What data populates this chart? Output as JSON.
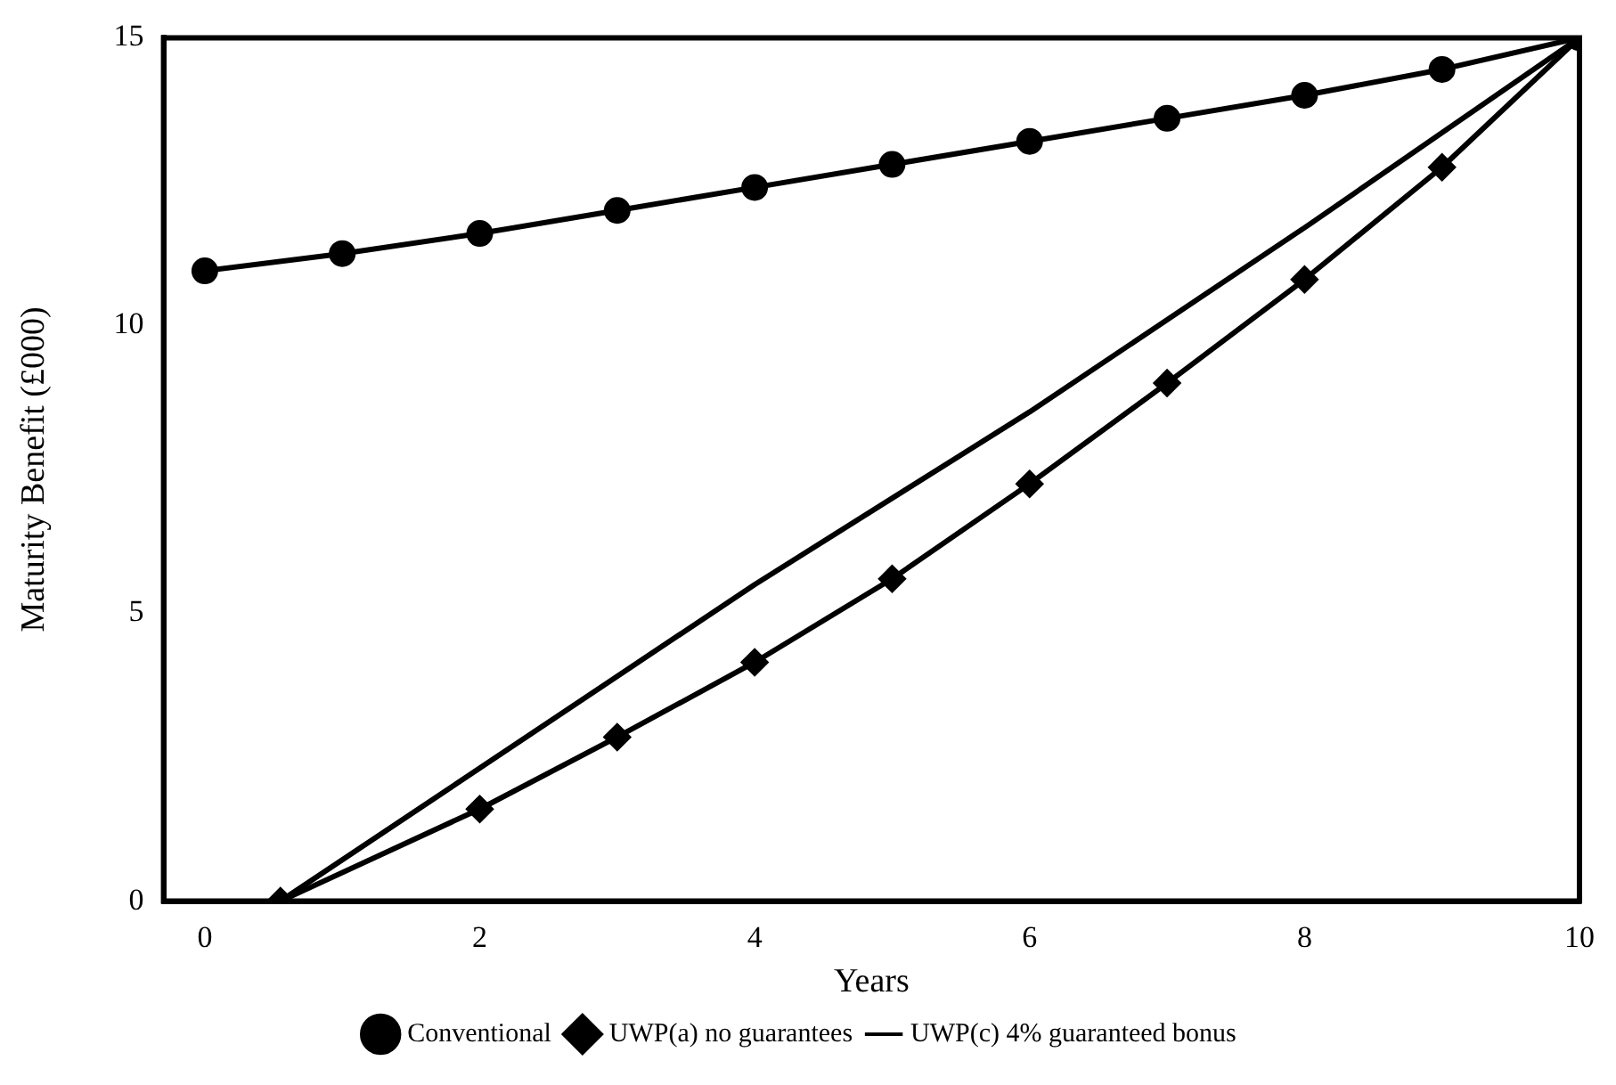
{
  "chart_data": {
    "type": "line",
    "xlabel": "Years",
    "ylabel": "Maturity Benefit (£000)",
    "xlim": [
      -0.3,
      10
    ],
    "ylim": [
      0,
      15
    ],
    "xticks": [
      0,
      2,
      4,
      6,
      8,
      10
    ],
    "yticks": [
      0,
      5,
      10,
      15
    ],
    "grid": false,
    "legend": "bottom",
    "series": [
      {
        "name": "Conventional",
        "color": "#000000",
        "marker": "circle",
        "x": [
          0,
          1,
          2,
          3,
          4,
          5,
          6,
          7,
          8,
          9,
          10
        ],
        "values": [
          10.95,
          11.25,
          11.6,
          12.0,
          12.4,
          12.8,
          13.2,
          13.6,
          14.0,
          14.45,
          15
        ]
      },
      {
        "name": "UWP(a) no guarantees",
        "color": "#000000",
        "marker": "diamond",
        "x": [
          0.55,
          2,
          3,
          4,
          5,
          6,
          7,
          8,
          9,
          10
        ],
        "values": [
          0,
          1.6,
          2.85,
          4.15,
          5.6,
          7.25,
          9.0,
          10.8,
          12.75,
          15
        ]
      },
      {
        "name": "UWP(c) 4% guaranteed bonus",
        "color": "#000000",
        "marker": "none",
        "x": [
          0.55,
          4,
          6,
          8,
          10
        ],
        "values": [
          0,
          5.5,
          8.5,
          11.7,
          15
        ]
      }
    ]
  }
}
